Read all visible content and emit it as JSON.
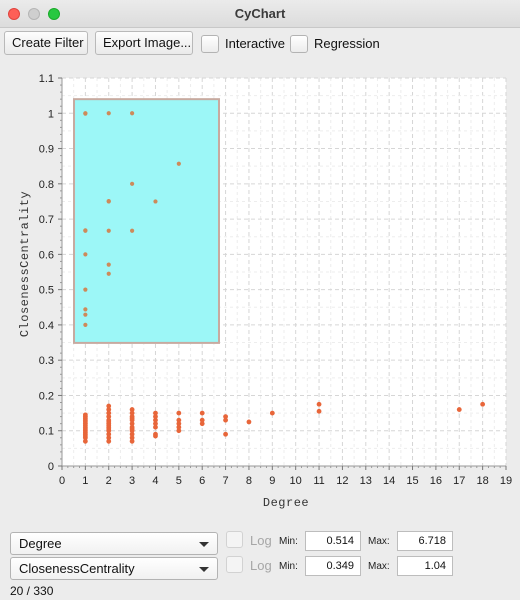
{
  "window": {
    "title": "CyChart"
  },
  "toolbar": {
    "create_filter_label": "Create Filter",
    "export_image_label": "Export Image...",
    "interactive_label": "Interactive",
    "regression_label": "Regression"
  },
  "chart_data": {
    "type": "scatter",
    "xlabel": "Degree",
    "ylabel": "ClosenessCentrality",
    "xlim": [
      0,
      19
    ],
    "ylim": [
      0,
      1.1
    ],
    "xticks": [
      "0",
      "1",
      "2",
      "3",
      "4",
      "5",
      "6",
      "7",
      "8",
      "9",
      "10",
      "11",
      "12",
      "13",
      "14",
      "15",
      "16",
      "17",
      "18",
      "19"
    ],
    "yticks": [
      "0",
      "0.1",
      "0.2",
      "0.3",
      "0.4",
      "0.5",
      "0.6",
      "0.7",
      "0.8",
      "0.9",
      "1",
      "1.1"
    ],
    "grid": true,
    "colors": {
      "selected": "#cd8a5a",
      "unselected": "#e8663a",
      "selection_fill": "#9cf7f7",
      "selection_stroke": "#c7aaa0"
    },
    "selection": {
      "x": [
        0.514,
        6.718
      ],
      "y": [
        0.349,
        1.04
      ]
    },
    "selected_points": [
      [
        1,
        1.0
      ],
      [
        2,
        1.0
      ],
      [
        3,
        1.0
      ],
      [
        1,
        0.667
      ],
      [
        2,
        0.75
      ],
      [
        2,
        0.667
      ],
      [
        2,
        0.571
      ],
      [
        2,
        0.545
      ],
      [
        3,
        0.8
      ],
      [
        3,
        0.667
      ],
      [
        4,
        0.75
      ],
      [
        5,
        0.857
      ],
      [
        1,
        0.6
      ],
      [
        1,
        0.5
      ],
      [
        1,
        0.444
      ],
      [
        1,
        0.429
      ],
      [
        1,
        0.4
      ],
      [
        2,
        0.751
      ],
      [
        1,
        0.668
      ],
      [
        1,
        0.999
      ]
    ],
    "unselected_points": [
      [
        1,
        0.07
      ],
      [
        1,
        0.08
      ],
      [
        1,
        0.09
      ],
      [
        1,
        0.1
      ],
      [
        1,
        0.105
      ],
      [
        1,
        0.11
      ],
      [
        1,
        0.115
      ],
      [
        1,
        0.12
      ],
      [
        1,
        0.125
      ],
      [
        1,
        0.13
      ],
      [
        1,
        0.135
      ],
      [
        1,
        0.14
      ],
      [
        1,
        0.145
      ],
      [
        1,
        0.095
      ],
      [
        1,
        0.085
      ],
      [
        2,
        0.07
      ],
      [
        2,
        0.08
      ],
      [
        2,
        0.09
      ],
      [
        2,
        0.1
      ],
      [
        2,
        0.11
      ],
      [
        2,
        0.12
      ],
      [
        2,
        0.13
      ],
      [
        2,
        0.14
      ],
      [
        2,
        0.15
      ],
      [
        2,
        0.16
      ],
      [
        2,
        0.17
      ],
      [
        2,
        0.105
      ],
      [
        2,
        0.115
      ],
      [
        2,
        0.125
      ],
      [
        3,
        0.07
      ],
      [
        3,
        0.08
      ],
      [
        3,
        0.09
      ],
      [
        3,
        0.1
      ],
      [
        3,
        0.11
      ],
      [
        3,
        0.12
      ],
      [
        3,
        0.13
      ],
      [
        3,
        0.14
      ],
      [
        3,
        0.15
      ],
      [
        3,
        0.16
      ],
      [
        3,
        0.105
      ],
      [
        3,
        0.135
      ],
      [
        4,
        0.085
      ],
      [
        4,
        0.09
      ],
      [
        4,
        0.11
      ],
      [
        4,
        0.12
      ],
      [
        4,
        0.13
      ],
      [
        4,
        0.14
      ],
      [
        4,
        0.15
      ],
      [
        5,
        0.1
      ],
      [
        5,
        0.11
      ],
      [
        5,
        0.12
      ],
      [
        5,
        0.13
      ],
      [
        5,
        0.15
      ],
      [
        6,
        0.12
      ],
      [
        6,
        0.13
      ],
      [
        6,
        0.15
      ],
      [
        7,
        0.09
      ],
      [
        7,
        0.13
      ],
      [
        7,
        0.14
      ],
      [
        8,
        0.125
      ],
      [
        9,
        0.15
      ],
      [
        11,
        0.155
      ],
      [
        11,
        0.175
      ],
      [
        17,
        0.16
      ],
      [
        18,
        0.175
      ]
    ]
  },
  "x_control": {
    "selected": "Degree",
    "log_label": "Log",
    "min_label": "Min:",
    "min_value": "0.514",
    "max_label": "Max:",
    "max_value": "6.718"
  },
  "y_control": {
    "selected": "ClosenessCentrality",
    "log_label": "Log",
    "min_label": "Min:",
    "min_value": "0.349",
    "max_label": "Max:",
    "max_value": "1.04"
  },
  "status": {
    "text": "20 / 330"
  }
}
